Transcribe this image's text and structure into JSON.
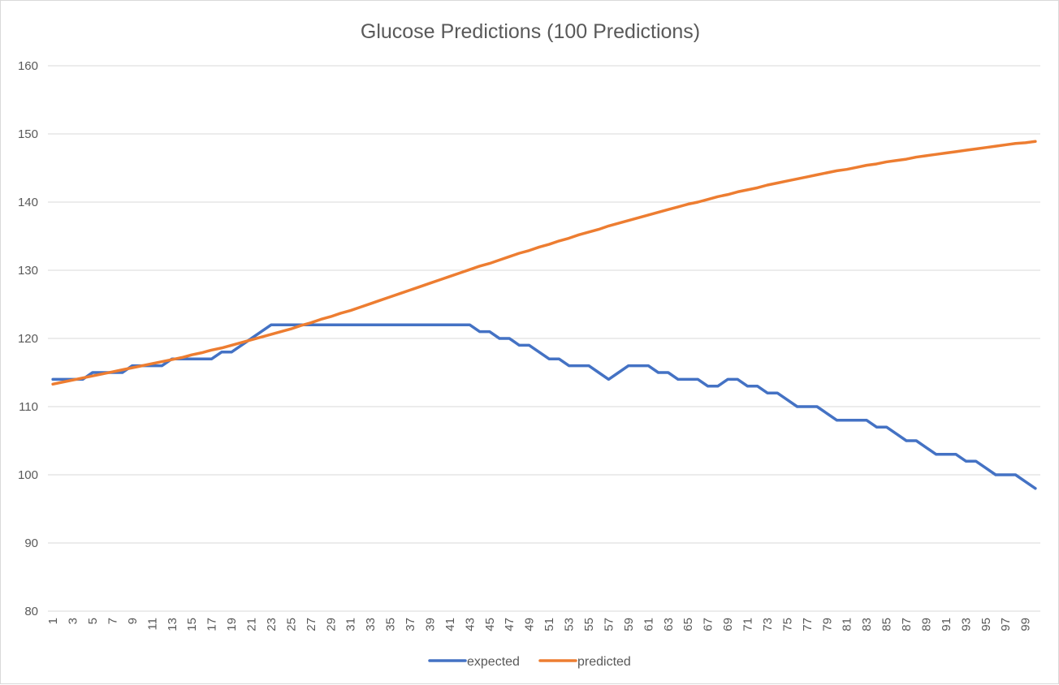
{
  "chart_data": {
    "type": "line",
    "title": "Glucose Predictions (100 Predictions)",
    "xlabel": "",
    "ylabel": "",
    "ylim": [
      80,
      160
    ],
    "y_ticks": [
      80,
      90,
      100,
      110,
      120,
      130,
      140,
      150,
      160
    ],
    "x_tick_every": 2,
    "grid": "horizontal",
    "legend": "bottom",
    "colors": {
      "expected": "#4472c4",
      "predicted": "#ed7d31"
    },
    "x": [
      1,
      2,
      3,
      4,
      5,
      6,
      7,
      8,
      9,
      10,
      11,
      12,
      13,
      14,
      15,
      16,
      17,
      18,
      19,
      20,
      21,
      22,
      23,
      24,
      25,
      26,
      27,
      28,
      29,
      30,
      31,
      32,
      33,
      34,
      35,
      36,
      37,
      38,
      39,
      40,
      41,
      42,
      43,
      44,
      45,
      46,
      47,
      48,
      49,
      50,
      51,
      52,
      53,
      54,
      55,
      56,
      57,
      58,
      59,
      60,
      61,
      62,
      63,
      64,
      65,
      66,
      67,
      68,
      69,
      70,
      71,
      72,
      73,
      74,
      75,
      76,
      77,
      78,
      79,
      80,
      81,
      82,
      83,
      84,
      85,
      86,
      87,
      88,
      89,
      90,
      91,
      92,
      93,
      94,
      95,
      96,
      97,
      98,
      99,
      100
    ],
    "series": [
      {
        "name": "expected",
        "values": [
          114,
          114,
          114,
          114,
          115,
          115,
          115,
          115,
          116,
          116,
          116,
          116,
          117,
          117,
          117,
          117,
          117,
          118,
          118,
          119,
          120,
          121,
          122,
          122,
          122,
          122,
          122,
          122,
          122,
          122,
          122,
          122,
          122,
          122,
          122,
          122,
          122,
          122,
          122,
          122,
          122,
          122,
          122,
          121,
          121,
          120,
          120,
          119,
          119,
          118,
          117,
          117,
          116,
          116,
          116,
          115,
          114,
          115,
          116,
          116,
          116,
          115,
          115,
          114,
          114,
          114,
          113,
          113,
          114,
          114,
          113,
          113,
          112,
          112,
          111,
          110,
          110,
          110,
          109,
          108,
          108,
          108,
          108,
          107,
          107,
          106,
          105,
          105,
          104,
          103,
          103,
          103,
          102,
          102,
          101,
          100,
          100,
          100,
          99,
          98
        ]
      },
      {
        "name": "predicted",
        "values": [
          113.3,
          113.6,
          113.9,
          114.2,
          114.5,
          114.8,
          115.1,
          115.4,
          115.7,
          116.0,
          116.3,
          116.6,
          116.9,
          117.2,
          117.6,
          117.9,
          118.3,
          118.6,
          119.0,
          119.4,
          119.8,
          120.2,
          120.6,
          121.0,
          121.4,
          121.9,
          122.3,
          122.8,
          123.2,
          123.7,
          124.1,
          124.6,
          125.1,
          125.6,
          126.1,
          126.6,
          127.1,
          127.6,
          128.1,
          128.6,
          129.1,
          129.6,
          130.1,
          130.6,
          131.0,
          131.5,
          132.0,
          132.5,
          132.9,
          133.4,
          133.8,
          134.3,
          134.7,
          135.2,
          135.6,
          136.0,
          136.5,
          136.9,
          137.3,
          137.7,
          138.1,
          138.5,
          138.9,
          139.3,
          139.7,
          140.0,
          140.4,
          140.8,
          141.1,
          141.5,
          141.8,
          142.1,
          142.5,
          142.8,
          143.1,
          143.4,
          143.7,
          144.0,
          144.3,
          144.6,
          144.8,
          145.1,
          145.4,
          145.6,
          145.9,
          146.1,
          146.3,
          146.6,
          146.8,
          147.0,
          147.2,
          147.4,
          147.6,
          147.8,
          148.0,
          148.2,
          148.4,
          148.6,
          148.7,
          148.9
        ]
      }
    ]
  }
}
